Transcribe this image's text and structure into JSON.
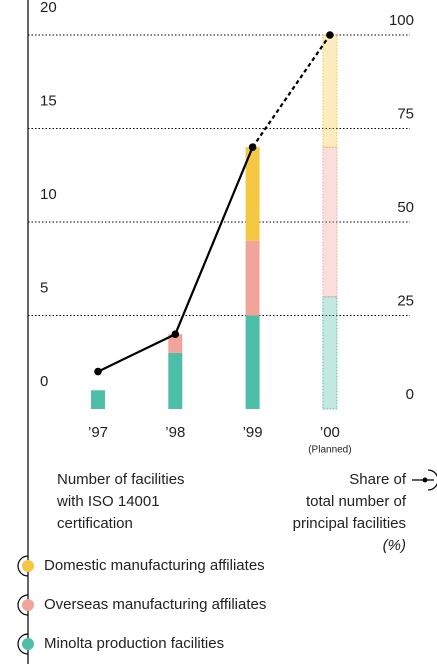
{
  "chart_data": {
    "type": "bar",
    "categories": [
      "’97",
      "’98",
      "’99",
      "’00"
    ],
    "category_notes": [
      null,
      null,
      null,
      "(Planned)"
    ],
    "series": [
      {
        "name": "Domestic manufacturing affiliates",
        "color": "#f5c844",
        "values": [
          0,
          0,
          5,
          6
        ]
      },
      {
        "name": "Overseas manufacturing affiliates",
        "color": "#f2a49a",
        "values": [
          0,
          1,
          4,
          8
        ]
      },
      {
        "name": "Minolta production facilities",
        "color": "#4dbfa9",
        "values": [
          1,
          3,
          5,
          6
        ]
      }
    ],
    "line": {
      "values": [
        10,
        20,
        70,
        100
      ],
      "axis": "y2",
      "color": "#000000"
    },
    "ylim": [
      0,
      20
    ],
    "yticks": [
      0,
      5,
      10,
      15,
      20
    ],
    "y2lim": [
      0,
      100
    ],
    "y2ticks": [
      0,
      25,
      50,
      75,
      100
    ],
    "ylabel": [
      "Number of facilities",
      "with ISO 14001",
      "certification"
    ],
    "y2label": [
      "Share of",
      "total number of",
      "principal facilities",
      "(%)"
    ],
    "grid": true
  }
}
